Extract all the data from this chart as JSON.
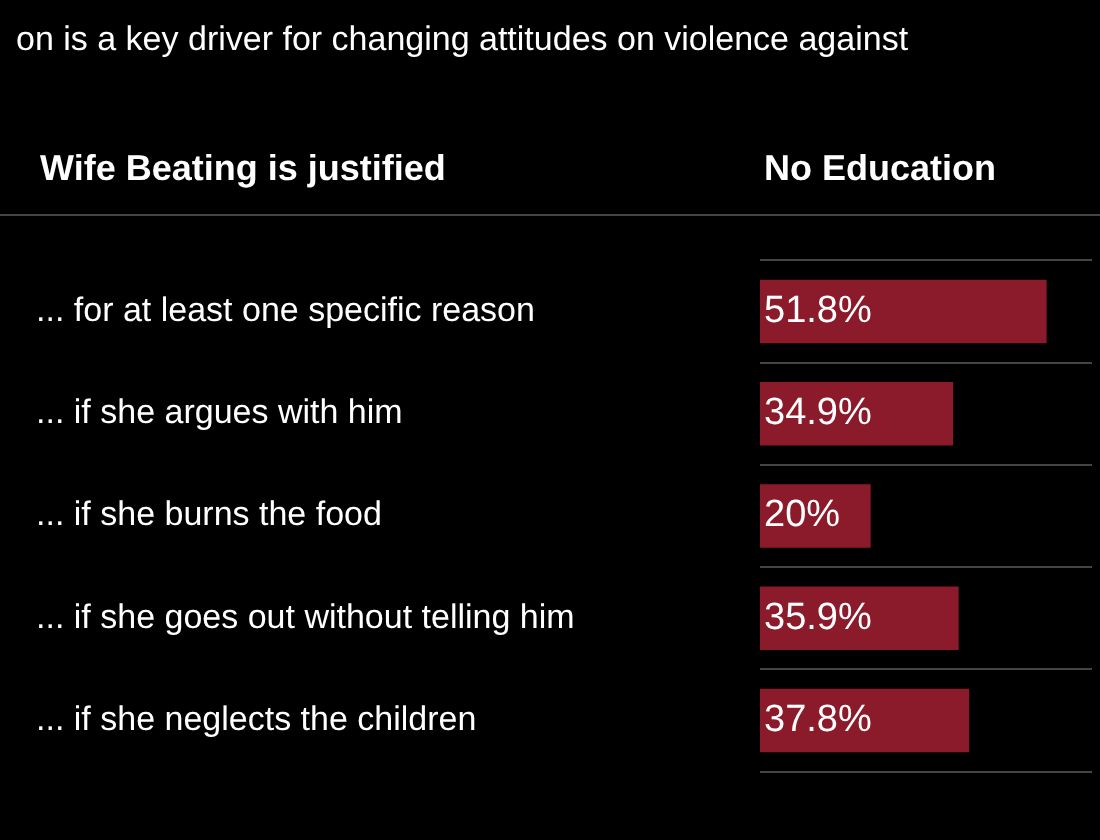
{
  "chart_data": {
    "type": "bar",
    "orientation": "horizontal",
    "title": "on is a key driver for changing attitudes on violence against",
    "ylabel": "Wife Beating is justified",
    "xlabel": "No Education",
    "categories": [
      "... for at least one specific reason",
      "... if she argues with him",
      "... if she burns the food",
      "... if she goes out without telling him",
      "... if she neglects the children"
    ],
    "values": [
      51.8,
      34.9,
      20,
      35.9,
      37.8
    ],
    "value_labels": [
      "51.8%",
      "34.9%",
      "20%",
      "35.9%",
      "37.8%"
    ],
    "color": "#8b1a2b",
    "grid": "y"
  }
}
